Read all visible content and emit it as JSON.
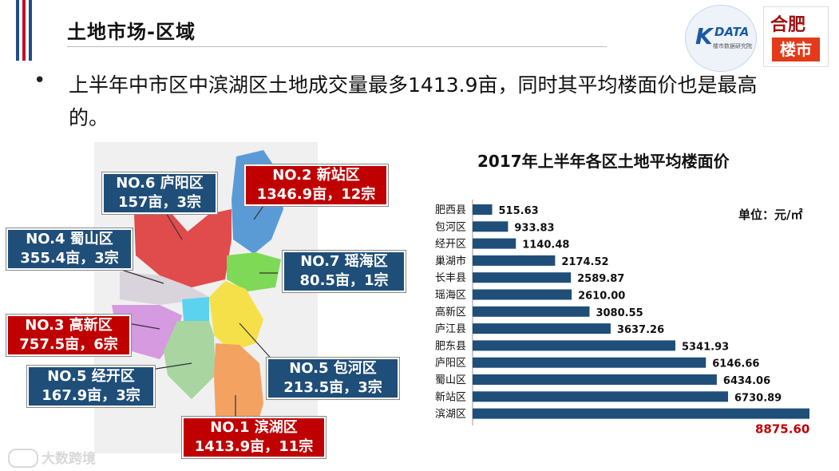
{
  "header": {
    "title": "土地市场-区域",
    "stripe_colors": [
      "#1f4e8c",
      "#c0102a",
      "#1f4e8c"
    ]
  },
  "logos": {
    "kdata_mark": "K",
    "kdata_word": "DATA",
    "kdata_sub": "楼市数据研究院",
    "hefei_top": "合肥",
    "hefei_bottom": "楼市"
  },
  "bullet": {
    "text": "上半年中市区中滨湖区土地成交量最多1413.9亩，同时其平均楼面价也是最高的。"
  },
  "map": {
    "callouts": [
      {
        "id": "no6",
        "style": "blue",
        "line1": "NO.6 庐阳区",
        "line2": "157亩，3宗"
      },
      {
        "id": "no2",
        "style": "red",
        "line1": "NO.2  新站区",
        "line2": "1346.9亩，12宗"
      },
      {
        "id": "no4",
        "style": "blue",
        "line1": "NO.4  蜀山区",
        "line2": "355.4亩，3宗"
      },
      {
        "id": "no7",
        "style": "blue",
        "line1": "NO.7  瑶海区",
        "line2": "80.5亩，1宗"
      },
      {
        "id": "no3",
        "style": "red",
        "line1": "NO.3  高新区",
        "line2": "757.5亩，6宗"
      },
      {
        "id": "no5a",
        "style": "blue",
        "line1": "NO.5  经开区",
        "line2": "167.9亩，3宗"
      },
      {
        "id": "no5b",
        "style": "blue",
        "line1": "NO.5  包河区",
        "line2": "213.5亩，3宗"
      },
      {
        "id": "no1",
        "style": "red",
        "line1": "NO.1  滨湖区",
        "line2": "1413.9亩，11宗"
      }
    ],
    "region_colors": {
      "xinzhan": "#5b9bd5",
      "luyang": "#e04b4b",
      "yaohai": "#7ed957",
      "shushan": "#d9d4dc",
      "gaoxin": "#d59ae0",
      "center": "#5bd3ee",
      "baohe": "#f5e04a",
      "jingkai": "#a8d5a0",
      "binhu": "#f4a261"
    }
  },
  "chart_data": {
    "type": "bar",
    "orientation": "horizontal",
    "title": "2017年上半年各区土地平均楼面价",
    "unit_label": "单位：元/㎡",
    "categories": [
      "肥西县",
      "包河区",
      "经开区",
      "巢湖市",
      "长丰县",
      "瑶海区",
      "高新区",
      "庐江县",
      "肥东县",
      "庐阳区",
      "蜀山区",
      "新站区",
      "滨湖区"
    ],
    "values": [
      515.63,
      933.83,
      1140.48,
      2174.52,
      2589.87,
      2610.0,
      3080.55,
      3637.26,
      5341.93,
      6146.66,
      6434.06,
      6730.89,
      8875.6
    ],
    "value_labels": [
      "515.63",
      "933.83",
      "1140.48",
      "2174.52",
      "2589.87",
      "2610.00",
      "3080.55",
      "3637.26",
      "5341.93",
      "6146.66",
      "6434.06",
      "6730.89",
      "8875.60"
    ],
    "bar_color": "#1f4e79",
    "highlight_label_color": "#c00000",
    "xlim": [
      0,
      8875.6
    ]
  },
  "watermark": {
    "text": "大数跨境"
  }
}
